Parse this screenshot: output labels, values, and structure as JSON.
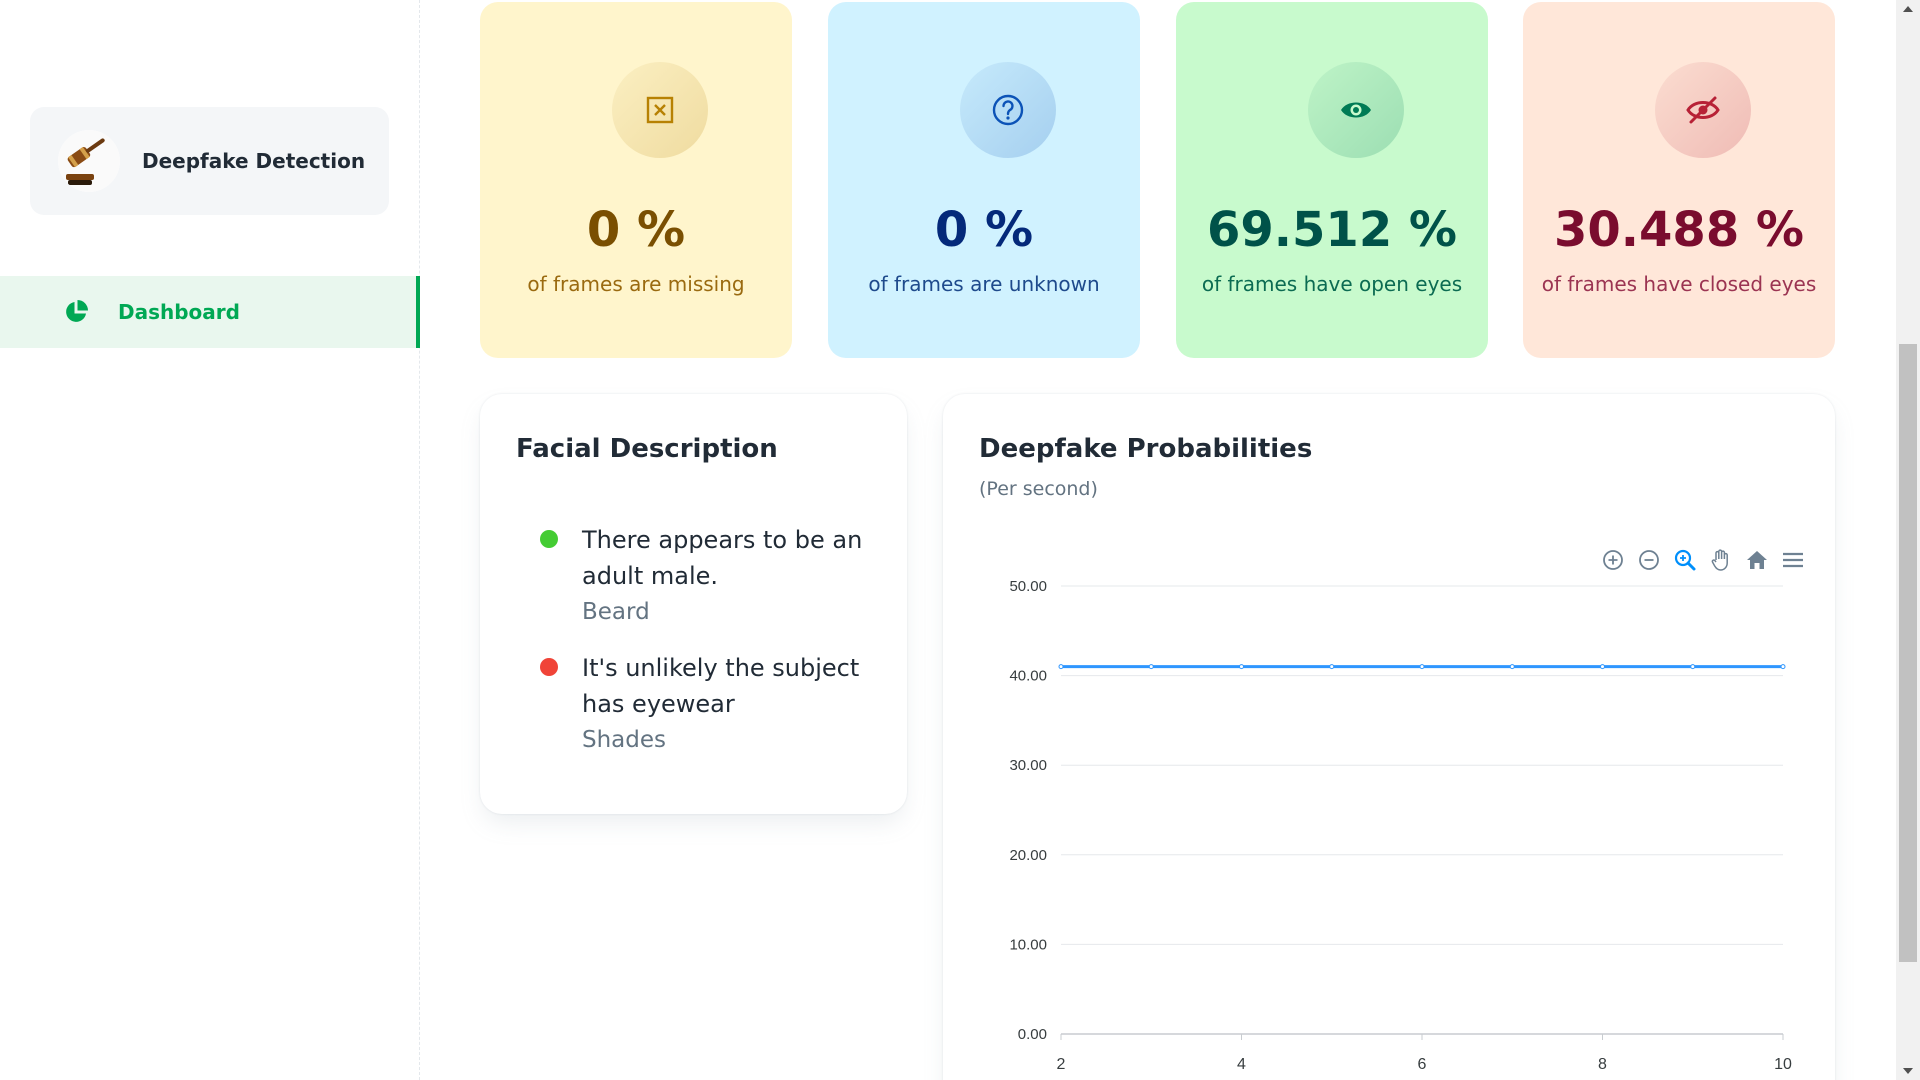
{
  "sidebar": {
    "brand_title": "Deepfake Detection",
    "nav": [
      {
        "label": "Dashboard",
        "icon": "pie-chart-icon",
        "active": true
      }
    ],
    "accent": "#00a854"
  },
  "stats": [
    {
      "value": "0 %",
      "label": "of frames are missing",
      "icon": "x-square-icon",
      "color": "#b78103"
    },
    {
      "value": "0 %",
      "label": "of frames are unknown",
      "icon": "question-circle-icon",
      "color": "#0c53b7"
    },
    {
      "value": "69.512 %",
      "label": "of frames have open eyes",
      "icon": "eye-icon",
      "color": "#007b55"
    },
    {
      "value": "30.488 %",
      "label": "of frames have closed eyes",
      "icon": "eye-off-icon",
      "color": "#b72136"
    }
  ],
  "facial": {
    "title": "Facial Description",
    "items": [
      {
        "text": "There appears to be an adult male.",
        "sub": "Beard",
        "status_color": "#44cc33"
      },
      {
        "text": "It's unlikely the subject has eyewear",
        "sub": "Shades",
        "status_color": "#f04438"
      }
    ]
  },
  "probabilities": {
    "title": "Deepfake Probabilities",
    "subtitle": "(Per second)",
    "toolbar": [
      "zoom-in-icon",
      "zoom-out-icon",
      "selection-zoom-icon",
      "pan-hand-icon",
      "reset-home-icon",
      "menu-icon"
    ]
  },
  "chart_data": {
    "type": "line",
    "x": [
      2,
      3,
      4,
      5,
      6,
      7,
      8,
      9,
      10
    ],
    "series": [
      {
        "values": [
          41,
          41,
          41,
          41,
          41,
          41,
          41,
          41,
          41
        ],
        "color": "#2e96ff"
      }
    ],
    "xticks": [
      "2",
      "4",
      "6",
      "8",
      "10"
    ],
    "yticks": [
      "0.00",
      "10.00",
      "20.00",
      "30.00",
      "40.00",
      "50.00"
    ],
    "xlim": [
      2,
      10
    ],
    "ylim": [
      0,
      50
    ],
    "grid": true
  }
}
